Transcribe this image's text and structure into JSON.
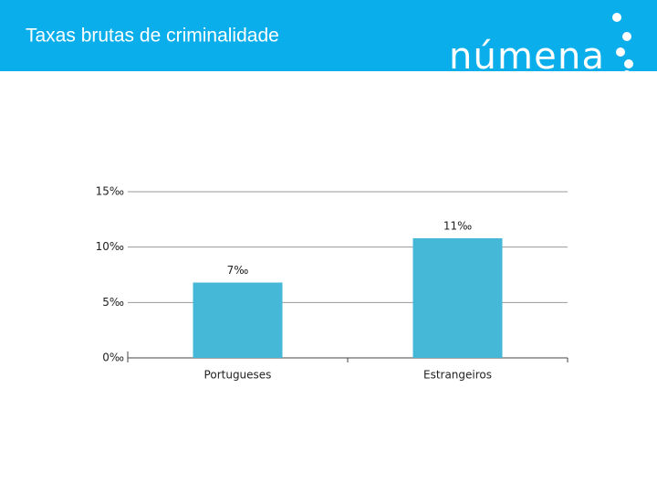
{
  "logo": "númena",
  "chart_data": {
    "type": "bar",
    "title": "Taxas brutas de criminalidade",
    "categories": [
      "Portugueses",
      "Estrangeiros"
    ],
    "values": [
      6.8,
      10.8
    ],
    "value_labels": [
      "7‰",
      "11‰"
    ],
    "color": "#45b8d8",
    "ylim": [
      0,
      15
    ],
    "yticks": [
      {
        "value": 0,
        "label": "0‰"
      },
      {
        "value": 5,
        "label": "5‰"
      },
      {
        "value": 10,
        "label": "10‰"
      },
      {
        "value": 15,
        "label": "15‰"
      }
    ],
    "grid": true
  }
}
